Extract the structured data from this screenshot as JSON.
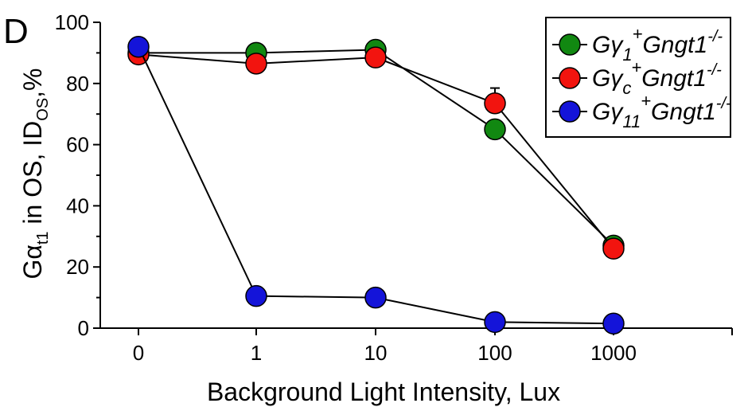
{
  "panel_label": "D",
  "chart_data": {
    "type": "line",
    "title": "",
    "categories": [
      "0",
      "1",
      "10",
      "100",
      "1000"
    ],
    "xlabel": "Background Light Intensity, Lux",
    "ylabel": {
      "prefix": "G",
      "alpha": "α",
      "alpha_sub": "t1",
      "middle": " in OS, ID",
      "os_sub": "OS",
      "suffix": ",%"
    },
    "yticks": [
      "0",
      "20",
      "40",
      "60",
      "80",
      "100"
    ],
    "ylim": [
      0,
      100
    ],
    "grid": false,
    "legend_placement": "top-right",
    "series": [
      {
        "name": "Gγ1+Gngt1-/-",
        "legend": {
          "base": "Gγ",
          "sub": "1",
          "sup": "+",
          "rest": "Gngt1",
          "rest_sup": "-/-"
        },
        "color": "#118811",
        "values": [
          90,
          90,
          91,
          65,
          27
        ],
        "errors": [
          0,
          0,
          0,
          0,
          0
        ]
      },
      {
        "name": "Gγc+Gngt1-/-",
        "legend": {
          "base": "Gγ",
          "sub": "c",
          "sup": "+",
          "rest": "Gngt1",
          "rest_sup": "-/-"
        },
        "color": "#f2140f",
        "values": [
          89.5,
          86.5,
          88.5,
          73.5,
          26
        ],
        "errors": [
          0,
          0,
          0,
          5,
          3
        ]
      },
      {
        "name": "Gγ11+Gngt1-/-",
        "legend": {
          "base": "Gγ",
          "sub": "11",
          "sup": "+",
          "rest": "Gngt1",
          "rest_sup": "-/-"
        },
        "color": "#1414d9",
        "values": [
          92,
          10.5,
          10,
          2,
          1.5
        ],
        "errors": [
          0,
          0,
          0,
          0,
          0
        ]
      }
    ]
  }
}
